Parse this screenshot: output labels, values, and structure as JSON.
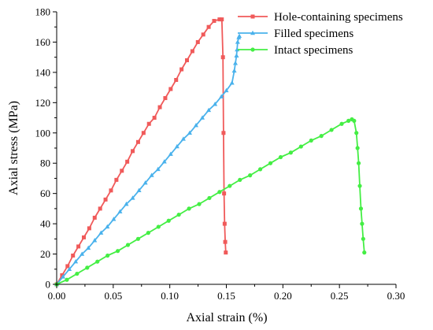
{
  "chart_data": {
    "type": "line",
    "xlabel": "Axial strain (%)",
    "ylabel": "Axial stress (MPa)",
    "xlim": [
      0,
      0.3
    ],
    "ylim": [
      0,
      180
    ],
    "xticks": [
      "0.00",
      "0.05",
      "0.10",
      "0.15",
      "0.20",
      "0.25",
      "0.30"
    ],
    "yticks": [
      "0",
      "20",
      "40",
      "60",
      "80",
      "100",
      "120",
      "140",
      "160",
      "180"
    ],
    "grid": false,
    "legend_position": "top-right",
    "series": [
      {
        "name": "Hole-containing specimens",
        "color": "#f05a5a",
        "marker": "square",
        "x": [
          0.0,
          0.0048,
          0.0096,
          0.0144,
          0.0192,
          0.024,
          0.0288,
          0.0336,
          0.0384,
          0.0432,
          0.048,
          0.0528,
          0.0576,
          0.0624,
          0.0672,
          0.072,
          0.0768,
          0.0816,
          0.0864,
          0.0912,
          0.096,
          0.1008,
          0.1056,
          0.1104,
          0.1152,
          0.12,
          0.1248,
          0.1296,
          0.1344,
          0.1392,
          0.144,
          0.146,
          0.147,
          0.1475,
          0.148,
          0.1485,
          0.149,
          0.1495
        ],
        "y": [
          0,
          6,
          12,
          19,
          25,
          31,
          37,
          44,
          50,
          56,
          62,
          69,
          75,
          81,
          88,
          94,
          100,
          106,
          110,
          117,
          123,
          129,
          135,
          142,
          148,
          154,
          160,
          165,
          170,
          174,
          175,
          175,
          150,
          100,
          60,
          40,
          28,
          21
        ]
      },
      {
        "name": "Filled specimens",
        "color": "#4ab2ec",
        "marker": "triangle",
        "x": [
          0.0,
          0.0056,
          0.0112,
          0.0168,
          0.0224,
          0.028,
          0.0336,
          0.0392,
          0.0448,
          0.0504,
          0.056,
          0.0616,
          0.0672,
          0.0728,
          0.0784,
          0.084,
          0.0896,
          0.0952,
          0.1008,
          0.1064,
          0.112,
          0.1176,
          0.1232,
          0.1288,
          0.1344,
          0.14,
          0.1456,
          0.15,
          0.155,
          0.157,
          0.158,
          0.159,
          0.1595,
          0.16,
          0.161,
          0.1615
        ],
        "y": [
          0,
          5,
          10,
          15,
          20,
          24,
          29,
          34,
          38,
          43,
          48,
          53,
          57,
          62,
          67,
          72,
          76,
          81,
          86,
          91,
          96,
          100,
          105,
          110,
          115,
          119,
          124,
          128,
          133,
          141,
          146,
          151,
          155,
          160,
          163,
          164
        ]
      },
      {
        "name": "Intact specimens",
        "color": "#44ee44",
        "marker": "circle",
        "x": [
          0.0,
          0.009,
          0.018,
          0.027,
          0.036,
          0.045,
          0.054,
          0.063,
          0.072,
          0.081,
          0.09,
          0.099,
          0.108,
          0.117,
          0.126,
          0.135,
          0.144,
          0.153,
          0.162,
          0.171,
          0.18,
          0.189,
          0.198,
          0.207,
          0.216,
          0.225,
          0.234,
          0.243,
          0.252,
          0.258,
          0.261,
          0.263,
          0.265,
          0.266,
          0.267,
          0.268,
          0.269,
          0.27,
          0.271,
          0.272
        ],
        "y": [
          0,
          3,
          7,
          11,
          15,
          19,
          22,
          26,
          30,
          34,
          38,
          42,
          46,
          50,
          53,
          57,
          61,
          65,
          69,
          72,
          76,
          80,
          84,
          87,
          91,
          95,
          98,
          102,
          106,
          108,
          109,
          108,
          100,
          90,
          80,
          65,
          50,
          40,
          30,
          21
        ]
      }
    ]
  }
}
